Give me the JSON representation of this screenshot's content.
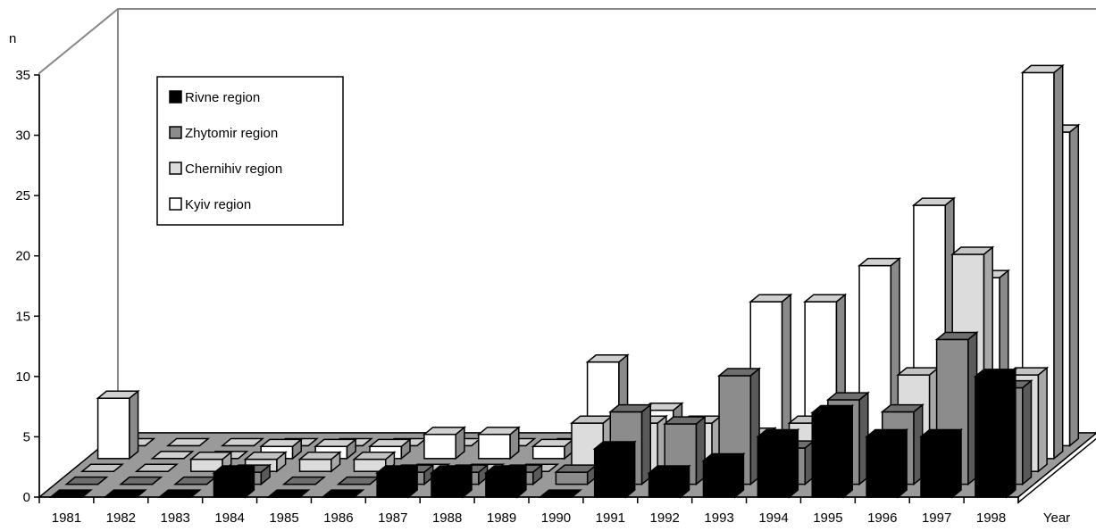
{
  "chart_data": {
    "type": "bar",
    "style": "3d-depth",
    "title": "",
    "xlabel": "Year",
    "ylabel": "n",
    "ylim": [
      0,
      35
    ],
    "yticks": [
      "0",
      "5",
      "10",
      "15",
      "20",
      "25",
      "30",
      "35"
    ],
    "categories": [
      "1981",
      "1982",
      "1983",
      "1984",
      "1985",
      "1986",
      "1987",
      "1988",
      "1989",
      "1990",
      "1991",
      "1992",
      "1993",
      "1994",
      "1995",
      "1996",
      "1997",
      "1998"
    ],
    "legend_position": "top-left",
    "series": [
      {
        "name": "Rivne region",
        "color": "#000000",
        "values": [
          0,
          0,
          0,
          2,
          0,
          0,
          2,
          2,
          2,
          0,
          4,
          2,
          3,
          5,
          7,
          5,
          5,
          10
        ]
      },
      {
        "name": "Zhytomir region",
        "color": "#8c8c8c",
        "values": [
          0,
          0,
          0,
          1,
          0,
          0,
          1,
          1,
          1,
          1,
          6,
          5,
          9,
          3,
          7,
          6,
          12,
          8
        ]
      },
      {
        "name": "Chernihiv region",
        "color": "#dcdcdc",
        "values": [
          0,
          0,
          1,
          1,
          1,
          1,
          0,
          0,
          0,
          4,
          4,
          4,
          3,
          4,
          1,
          8,
          18,
          8
        ]
      },
      {
        "name": "Kyiv region",
        "color": "#ffffff",
        "values": [
          5,
          0,
          0,
          1,
          1,
          1,
          2,
          2,
          1,
          8,
          4,
          1,
          13,
          13,
          16,
          21,
          15,
          32
        ]
      }
    ],
    "series_back": [
      {
        "name": "",
        "color": "#ffffff",
        "values": [
          0,
          0,
          0,
          0,
          0,
          0,
          0,
          0,
          0,
          0,
          0,
          0,
          0,
          0,
          0,
          0,
          0,
          26
        ]
      }
    ]
  }
}
